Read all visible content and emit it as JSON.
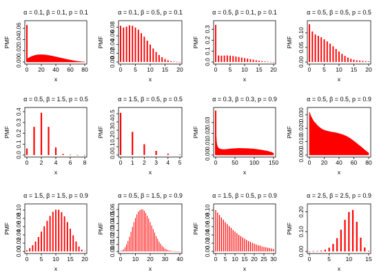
{
  "chart_data": [
    {
      "type": "bar",
      "title": "α = 0.1, β = 0.1, p = 0.1",
      "xlabel": "x",
      "ylabel": "PMF",
      "xlim": [
        0,
        80
      ],
      "ylim": [
        0,
        0.07
      ],
      "xticks": [
        0,
        20,
        40,
        60,
        80
      ],
      "yticks": [
        0,
        0.02,
        0.04,
        0.06
      ],
      "ytick_labels": [
        "0.00",
        "0.02",
        "0.04",
        "0.06"
      ],
      "spike": 0.066,
      "body": {
        "x": [
          1,
          5,
          10,
          15,
          20,
          25,
          30,
          35,
          40,
          45,
          50,
          55,
          60,
          65,
          70,
          75,
          80
        ],
        "y": [
          0.006,
          0.009,
          0.0115,
          0.0128,
          0.013,
          0.0127,
          0.0118,
          0.0106,
          0.0092,
          0.0077,
          0.0062,
          0.0047,
          0.0034,
          0.0022,
          0.0012,
          0.0005,
          0.0001
        ]
      }
    },
    {
      "type": "bar",
      "title": "α = 0.1, β = 0.5, p = 0.1",
      "xlabel": "x",
      "ylabel": "PMF",
      "xlim": [
        0,
        20
      ],
      "ylim": [
        0,
        0.09
      ],
      "xticks": [
        0,
        5,
        10,
        15,
        20
      ],
      "yticks": [
        0,
        0.02,
        0.04,
        0.06,
        0.08
      ],
      "ytick_labels": [
        "0.00",
        "0.02",
        "0.04",
        "0.06",
        "0.08"
      ],
      "x": [
        0,
        1,
        2,
        3,
        4,
        5,
        6,
        7,
        8,
        9,
        10,
        11,
        12,
        13,
        14,
        15,
        16,
        17,
        18,
        19,
        20
      ],
      "y": [
        0.083,
        0.079,
        0.081,
        0.084,
        0.083,
        0.079,
        0.074,
        0.066,
        0.058,
        0.049,
        0.04,
        0.031,
        0.023,
        0.016,
        0.011,
        0.007,
        0.004,
        0.002,
        0.001,
        0.0005,
        0.0002
      ]
    },
    {
      "type": "bar",
      "title": "α = 0.5, β = 0.1, p = 0.1",
      "xlabel": "x",
      "ylabel": "PMF",
      "xlim": [
        0,
        20
      ],
      "ylim": [
        0,
        0.36
      ],
      "xticks": [
        0,
        5,
        10,
        15,
        20
      ],
      "yticks": [
        0,
        0.1,
        0.2,
        0.3
      ],
      "ytick_labels": [
        "0.0",
        "0.1",
        "0.2",
        "0.3"
      ],
      "x": [
        0,
        1,
        2,
        3,
        4,
        5,
        6,
        7,
        8,
        9,
        10,
        11,
        12,
        13,
        14,
        15,
        16,
        17,
        18,
        19,
        20
      ],
      "y": [
        0.34,
        0.06,
        0.058,
        0.059,
        0.06,
        0.058,
        0.055,
        0.051,
        0.046,
        0.041,
        0.036,
        0.031,
        0.026,
        0.021,
        0.016,
        0.012,
        0.008,
        0.005,
        0.003,
        0.0015,
        0.0006
      ]
    },
    {
      "type": "bar",
      "title": "α = 0.5, β = 0.5, p = 0.5",
      "xlabel": "x",
      "ylabel": "PMF",
      "xlim": [
        0,
        20
      ],
      "ylim": [
        0,
        0.135
      ],
      "xticks": [
        0,
        5,
        10,
        15,
        20
      ],
      "yticks": [
        0,
        0.05,
        0.1
      ],
      "ytick_labels": [
        "0.00",
        "0.05",
        "0.10"
      ],
      "x": [
        0,
        1,
        2,
        3,
        4,
        5,
        6,
        7,
        8,
        9,
        10,
        11,
        12,
        13,
        14,
        15,
        16,
        17,
        18,
        19,
        20
      ],
      "y": [
        0.13,
        0.105,
        0.095,
        0.09,
        0.085,
        0.078,
        0.071,
        0.063,
        0.054,
        0.045,
        0.036,
        0.028,
        0.021,
        0.015,
        0.011,
        0.008,
        0.006,
        0.005,
        0.004,
        0.003,
        0.002
      ]
    },
    {
      "type": "bar",
      "title": "α = 0.5, β = 1.5, p = 0.5",
      "xlabel": "x",
      "ylabel": "PMF",
      "xlim": [
        0,
        8
      ],
      "ylim": [
        0,
        0.42
      ],
      "xticks": [
        0,
        2,
        4,
        6,
        8
      ],
      "yticks": [
        0,
        0.1,
        0.2,
        0.3,
        0.4
      ],
      "ytick_labels": [
        "0.0",
        "0.1",
        "0.2",
        "0.3",
        "0.4"
      ],
      "x": [
        0,
        1,
        2,
        3,
        4,
        5,
        6,
        7,
        8
      ],
      "y": [
        0.06,
        0.26,
        0.39,
        0.26,
        0.07,
        0.01,
        0.003,
        0.001,
        0.0003
      ]
    },
    {
      "type": "bar",
      "title": "α = 1.5, β = 0.5, p = 0.5",
      "xlabel": "x",
      "ylabel": "PMF",
      "xlim": [
        0,
        5
      ],
      "ylim": [
        0,
        0.55
      ],
      "xticks": [
        0,
        1,
        2,
        3,
        4,
        5
      ],
      "yticks": [
        0,
        0.1,
        0.2,
        0.3,
        0.4,
        0.5
      ],
      "ytick_labels": [
        "0.0",
        "0.1",
        "0.2",
        "0.3",
        "0.4",
        "0.5"
      ],
      "x": [
        0,
        1,
        2,
        3,
        4,
        5
      ],
      "y": [
        0.51,
        0.28,
        0.13,
        0.05,
        0.015,
        0.005
      ]
    },
    {
      "type": "bar",
      "title": "α = 0.3, β = 0.3, p = 0.9",
      "xlabel": "x",
      "ylabel": "PMF",
      "xlim": [
        0,
        150
      ],
      "ylim": [
        0,
        0.042
      ],
      "xticks": [
        0,
        50,
        100,
        150
      ],
      "yticks": [
        0,
        0.01,
        0.02,
        0.03
      ],
      "ytick_labels": [
        "0.00",
        "0.01",
        "0.02",
        "0.03"
      ],
      "spike": 0.041,
      "body": {
        "x": [
          1,
          2,
          3,
          4,
          6,
          8,
          12,
          20,
          30,
          40,
          60,
          80,
          100,
          120,
          135,
          145,
          150
        ],
        "y": [
          0.02,
          0.013,
          0.01,
          0.0085,
          0.007,
          0.0062,
          0.0055,
          0.005,
          0.0053,
          0.0058,
          0.0062,
          0.006,
          0.0055,
          0.0045,
          0.0035,
          0.0025,
          0.0015
        ]
      }
    },
    {
      "type": "bar",
      "title": "α = 0.5, β = 0.5, p = 0.9",
      "xlabel": "x",
      "ylabel": "PMF",
      "xlim": [
        0,
        80
      ],
      "ylim": [
        0,
        0.034
      ],
      "xticks": [
        0,
        20,
        40,
        60,
        80
      ],
      "yticks": [
        0,
        0.01,
        0.02,
        0.03
      ],
      "ytick_labels": [
        "0.000",
        "0.010",
        "0.020",
        "0.030"
      ],
      "body": {
        "x": [
          0,
          2,
          4,
          6,
          8,
          10,
          14,
          18,
          22,
          26,
          30,
          35,
          40,
          45,
          50,
          55,
          60,
          65,
          70,
          75,
          80
        ],
        "y": [
          0.032,
          0.029,
          0.027,
          0.025,
          0.024,
          0.0225,
          0.0205,
          0.019,
          0.0182,
          0.0176,
          0.0172,
          0.0167,
          0.016,
          0.0152,
          0.014,
          0.0124,
          0.0104,
          0.0082,
          0.006,
          0.0036,
          0.0015
        ]
      }
    },
    {
      "type": "bar",
      "title": "α = 1.5, β = 1.5, p = 0.9",
      "xlabel": "x",
      "ylabel": "PMF",
      "xlim": [
        0,
        20
      ],
      "ylim": [
        0,
        0.11
      ],
      "xticks": [
        0,
        5,
        10,
        15,
        20
      ],
      "yticks": [
        0,
        0.02,
        0.04,
        0.06,
        0.08,
        0.1
      ],
      "ytick_labels": [
        "0.00",
        "0.02",
        "0.04",
        "0.06",
        "0.08",
        "0.10"
      ],
      "x": [
        0,
        1,
        2,
        3,
        4,
        5,
        6,
        7,
        8,
        9,
        10,
        11,
        12,
        13,
        14,
        15,
        16,
        17,
        18,
        19,
        20
      ],
      "y": [
        0.003,
        0.008,
        0.015,
        0.024,
        0.035,
        0.048,
        0.061,
        0.074,
        0.086,
        0.096,
        0.101,
        0.101,
        0.095,
        0.085,
        0.071,
        0.055,
        0.039,
        0.024,
        0.012,
        0.004,
        0.001
      ]
    },
    {
      "type": "bar",
      "title": "α = 0.5, β = 1.5, p = 0.9",
      "xlabel": "x",
      "ylabel": "PMF",
      "xlim": [
        0,
        40
      ],
      "ylim": [
        0,
        0.065
      ],
      "xticks": [
        0,
        10,
        20,
        30,
        40
      ],
      "yticks": [
        0,
        0.01,
        0.02,
        0.03,
        0.04,
        0.05,
        0.06
      ],
      "ytick_labels": [
        "0.00",
        "0.01",
        "0.02",
        "0.03",
        "0.04",
        "0.05",
        "0.06"
      ],
      "x": [
        0,
        1,
        2,
        3,
        4,
        5,
        6,
        7,
        8,
        9,
        10,
        11,
        12,
        13,
        14,
        15,
        16,
        17,
        18,
        19,
        20,
        21,
        22,
        23,
        24,
        25,
        26,
        27,
        28,
        29,
        30,
        31,
        32,
        33,
        34,
        35,
        36,
        37,
        38,
        39,
        40
      ],
      "y": [
        0.0005,
        0.0015,
        0.003,
        0.006,
        0.01,
        0.015,
        0.021,
        0.028,
        0.035,
        0.042,
        0.048,
        0.053,
        0.057,
        0.059,
        0.06,
        0.06,
        0.058,
        0.055,
        0.051,
        0.047,
        0.042,
        0.037,
        0.032,
        0.027,
        0.022,
        0.018,
        0.014,
        0.011,
        0.008,
        0.006,
        0.004,
        0.003,
        0.002,
        0.0014,
        0.001,
        0.0006,
        0.0004,
        0.0002,
        0.0001,
        0.0001,
        0
      ]
    },
    {
      "type": "bar",
      "title": "α = 1.5, β = 0.5, p = 0.9",
      "xlabel": "x",
      "ylabel": "PMF",
      "xlim": [
        0,
        30
      ],
      "ylim": [
        0,
        0.11
      ],
      "xticks": [
        0,
        5,
        10,
        15,
        20,
        25,
        30
      ],
      "yticks": [
        0,
        0.02,
        0.04,
        0.06,
        0.08,
        0.1
      ],
      "ytick_labels": [
        "0.00",
        "0.02",
        "0.04",
        "0.06",
        "0.08",
        "0.10"
      ],
      "x": [
        0,
        1,
        2,
        3,
        4,
        5,
        6,
        7,
        8,
        9,
        10,
        11,
        12,
        13,
        14,
        15,
        16,
        17,
        18,
        19,
        20,
        21,
        22,
        23,
        24,
        25,
        26,
        27,
        28,
        29,
        30
      ],
      "y": [
        0.1,
        0.094,
        0.088,
        0.082,
        0.077,
        0.071,
        0.066,
        0.061,
        0.057,
        0.052,
        0.048,
        0.044,
        0.04,
        0.037,
        0.034,
        0.031,
        0.028,
        0.025,
        0.023,
        0.021,
        0.019,
        0.017,
        0.015,
        0.014,
        0.012,
        0.011,
        0.01,
        0.009,
        0.008,
        0.007,
        0.006
      ]
    },
    {
      "type": "bar",
      "title": "α = 2.5, β = 2.5, p = 0.9",
      "xlabel": "x",
      "ylabel": "PMF",
      "xlim": [
        0,
        15
      ],
      "ylim": [
        0,
        0.23
      ],
      "xticks": [
        0,
        5,
        10,
        15
      ],
      "yticks": [
        0,
        0.1,
        0.2
      ],
      "ytick_labels": [
        "0.00",
        "0.10",
        "0.20"
      ],
      "x": [
        0,
        1,
        2,
        3,
        4,
        5,
        6,
        7,
        8,
        9,
        10,
        11,
        12,
        13,
        14,
        15
      ],
      "y": [
        0.0005,
        0.001,
        0.002,
        0.004,
        0.009,
        0.019,
        0.038,
        0.067,
        0.11,
        0.16,
        0.2,
        0.21,
        0.15,
        0.07,
        0.02,
        0.003
      ]
    }
  ]
}
